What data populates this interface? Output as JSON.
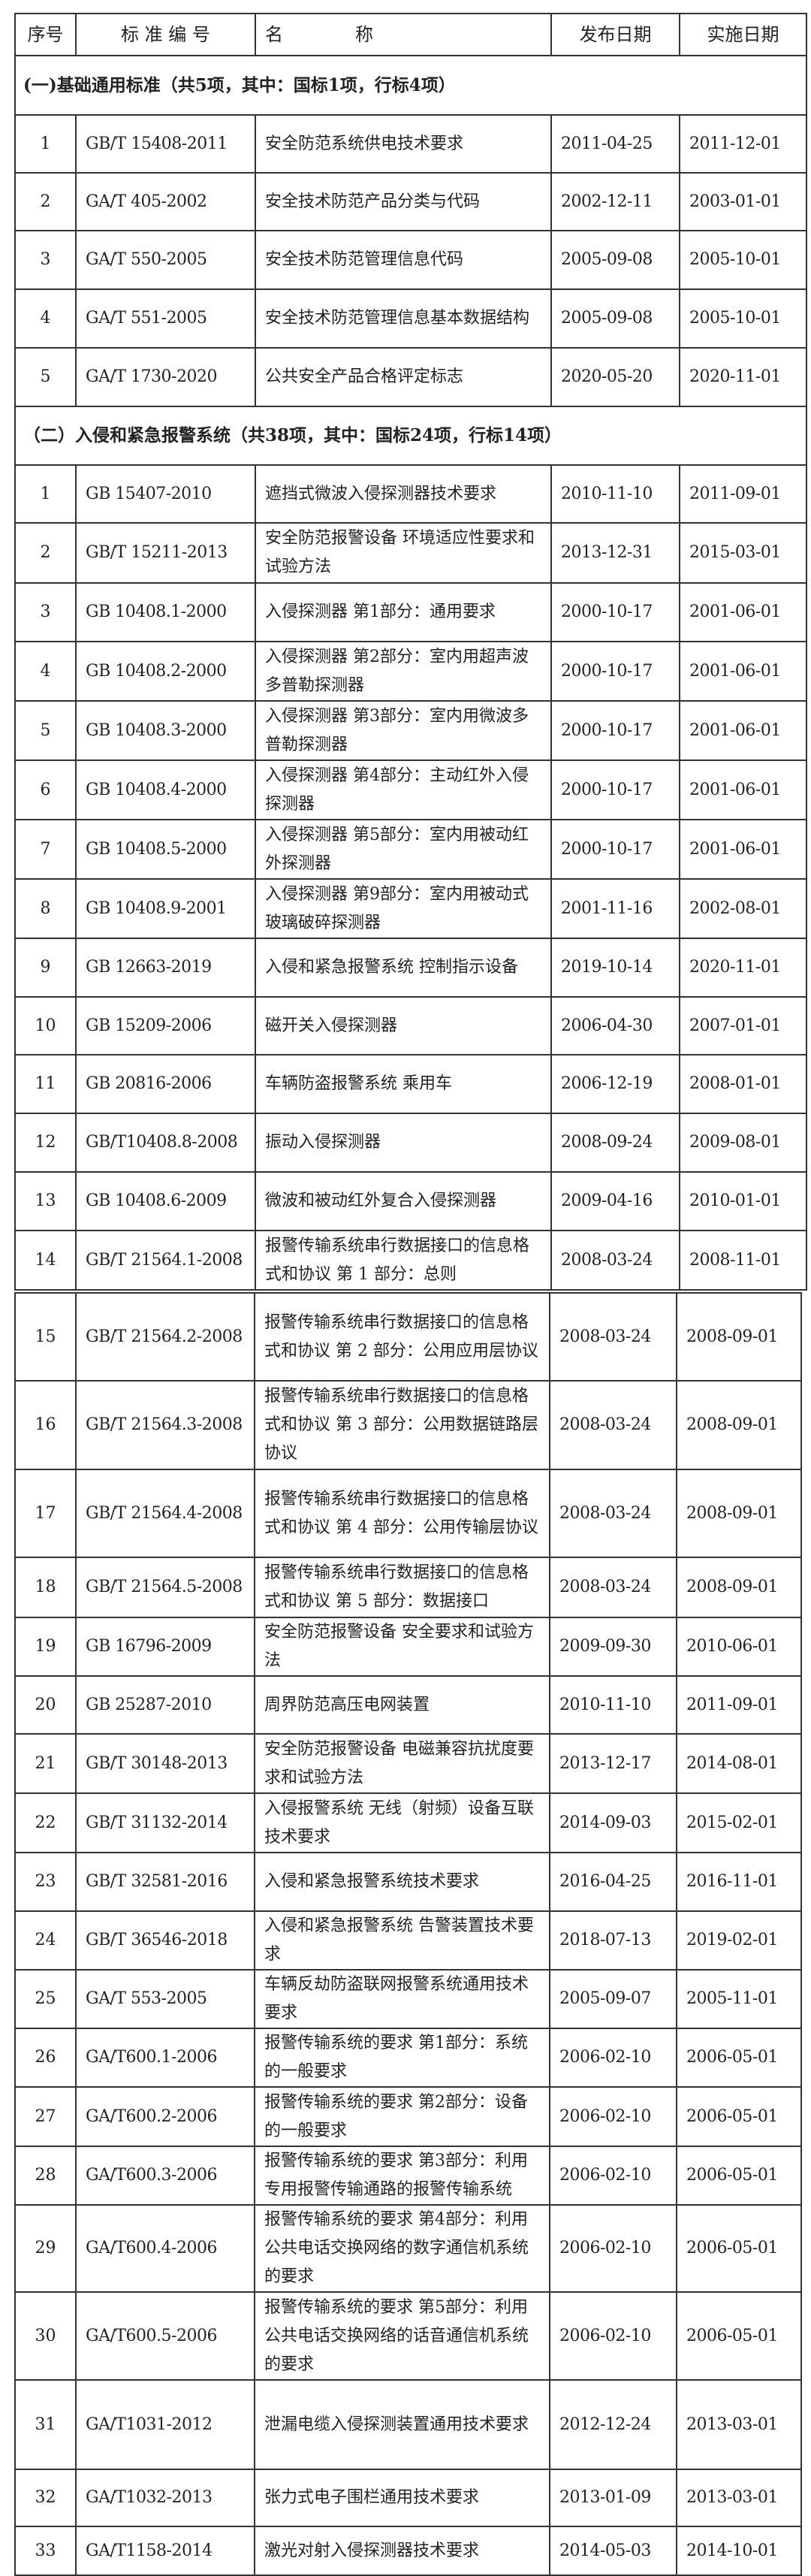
{
  "header": {
    "seq": "序号",
    "code": "标 准 编 号",
    "name": "名　　　　称",
    "publish": "发布日期",
    "effective": "实施日期"
  },
  "sections": [
    {
      "title": "(一)基础通用标准（共5项，其中：国标1项，行标4项）",
      "rows": [
        {
          "seq": "1",
          "code": "GB/T 15408-2011",
          "name": "安全防范系统供电技术要求",
          "publish": "2011-04-25",
          "effective": "2011-12-01"
        },
        {
          "seq": "2",
          "code": "GA/T 405-2002",
          "name": "安全技术防范产品分类与代码",
          "publish": "2002-12-11",
          "effective": "2003-01-01"
        },
        {
          "seq": "3",
          "code": "GA/T 550-2005",
          "name": "安全技术防范管理信息代码",
          "publish": "2005-09-08",
          "effective": "2005-10-01"
        },
        {
          "seq": "4",
          "code": "GA/T 551-2005",
          "name": "安全技术防范管理信息基本数据结构",
          "publish": "2005-09-08",
          "effective": "2005-10-01"
        },
        {
          "seq": "5",
          "code": "GA/T 1730-2020",
          "name": "公共安全产品合格评定标志",
          "publish": "2020-05-20",
          "effective": "2020-11-01"
        }
      ]
    },
    {
      "title": "（二）入侵和紧急报警系统（共38项，其中：国标24项，行标14项）",
      "rows": [
        {
          "seq": "1",
          "code": "GB 15407-2010",
          "name": "遮挡式微波入侵探测器技术要求",
          "publish": "2010-11-10",
          "effective": "2011-09-01"
        },
        {
          "seq": "2",
          "code": "GB/T 15211-2013",
          "name": "安全防范报警设备 环境适应性要求和试验方法",
          "publish": "2013-12-31",
          "effective": "2015-03-01"
        },
        {
          "seq": "3",
          "code": "GB 10408.1-2000",
          "name": "入侵探测器 第1部分：通用要求",
          "publish": "2000-10-17",
          "effective": "2001-06-01"
        },
        {
          "seq": "4",
          "code": "GB 10408.2-2000",
          "name": "入侵探测器 第2部分：室内用超声波多普勒探测器",
          "publish": "2000-10-17",
          "effective": "2001-06-01"
        },
        {
          "seq": "5",
          "code": "GB 10408.3-2000",
          "name": "入侵探测器 第3部分：室内用微波多普勒探测器",
          "publish": "2000-10-17",
          "effective": "2001-06-01"
        },
        {
          "seq": "6",
          "code": "GB 10408.4-2000",
          "name": "入侵探测器 第4部分：主动红外入侵探测器",
          "publish": "2000-10-17",
          "effective": "2001-06-01"
        },
        {
          "seq": "7",
          "code": "GB 10408.5-2000",
          "name": "入侵探测器 第5部分：室内用被动红外探测器",
          "publish": "2000-10-17",
          "effective": "2001-06-01"
        },
        {
          "seq": "8",
          "code": "GB 10408.9-2001",
          "name": "入侵探测器 第9部分：室内用被动式玻璃破碎探测器",
          "publish": "2001-11-16",
          "effective": "2002-08-01"
        },
        {
          "seq": "9",
          "code": "GB 12663-2019",
          "name": "入侵和紧急报警系统 控制指示设备",
          "publish": "2019-10-14",
          "effective": "2020-11-01"
        },
        {
          "seq": "10",
          "code": "GB 15209-2006",
          "name": "磁开关入侵探测器",
          "publish": "2006-04-30",
          "effective": "2007-01-01"
        },
        {
          "seq": "11",
          "code": "GB 20816-2006",
          "name": "车辆防盗报警系统 乘用车",
          "publish": "2006-12-19",
          "effective": "2008-01-01"
        },
        {
          "seq": "12",
          "code": "GB/T10408.8-2008",
          "name": "振动入侵探测器",
          "publish": "2008-09-24",
          "effective": "2009-08-01"
        },
        {
          "seq": "13",
          "code": "GB 10408.6-2009",
          "name": "微波和被动红外复合入侵探测器",
          "publish": "2009-04-16",
          "effective": "2010-01-01"
        },
        {
          "seq": "14",
          "code": "GB/T 21564.1-2008",
          "name": "报警传输系统串行数据接口的信息格式和协议 第 1 部分：总则",
          "publish": "2008-03-24",
          "effective": "2008-11-01"
        },
        {
          "seq": "15",
          "code": "GB/T 21564.2-2008",
          "name": "报警传输系统串行数据接口的信息格式和协议 第 2 部分：公用应用层协议",
          "publish": "2008-03-24",
          "effective": "2008-09-01"
        },
        {
          "seq": "16",
          "code": "GB/T 21564.3-2008",
          "name": "报警传输系统串行数据接口的信息格式和协议 第 3 部分：公用数据链路层协议",
          "publish": "2008-03-24",
          "effective": "2008-09-01"
        },
        {
          "seq": "17",
          "code": "GB/T 21564.4-2008",
          "name": "报警传输系统串行数据接口的信息格式和协议 第 4 部分：公用传输层协议",
          "publish": "2008-03-24",
          "effective": "2008-09-01"
        },
        {
          "seq": "18",
          "code": "GB/T 21564.5-2008",
          "name": "报警传输系统串行数据接口的信息格式和协议 第 5 部分：数据接口",
          "publish": "2008-03-24",
          "effective": "2008-09-01"
        },
        {
          "seq": "19",
          "code": "GB 16796-2009",
          "name": "安全防范报警设备 安全要求和试验方法",
          "publish": "2009-09-30",
          "effective": "2010-06-01"
        },
        {
          "seq": "20",
          "code": "GB 25287-2010",
          "name": "周界防范高压电网装置",
          "publish": "2010-11-10",
          "effective": "2011-09-01"
        },
        {
          "seq": "21",
          "code": "GB/T 30148-2013",
          "name": "安全防范报警设备 电磁兼容抗扰度要求和试验方法",
          "publish": "2013-12-17",
          "effective": "2014-08-01"
        },
        {
          "seq": "22",
          "code": "GB/T 31132-2014",
          "name": "入侵报警系统 无线（射频）设备互联技术要求",
          "publish": "2014-09-03",
          "effective": "2015-02-01"
        },
        {
          "seq": "23",
          "code": "GB/T 32581-2016",
          "name": "入侵和紧急报警系统技术要求",
          "publish": "2016-04-25",
          "effective": "2016-11-01"
        },
        {
          "seq": "24",
          "code": "GB/T 36546-2018",
          "name": "入侵和紧急报警系统 告警装置技术要求",
          "publish": "2018-07-13",
          "effective": "2019-02-01"
        },
        {
          "seq": "25",
          "code": "GA/T 553-2005",
          "name": "车辆反劫防盗联网报警系统通用技术要求",
          "publish": "2005-09-07",
          "effective": "2005-11-01"
        },
        {
          "seq": "26",
          "code": "GA/T600.1-2006",
          "name": "报警传输系统的要求 第1部分：系统的一般要求",
          "publish": "2006-02-10",
          "effective": "2006-05-01"
        },
        {
          "seq": "27",
          "code": "GA/T600.2-2006",
          "name": "报警传输系统的要求 第2部分：设备的一般要求",
          "publish": "2006-02-10",
          "effective": "2006-05-01"
        },
        {
          "seq": "28",
          "code": "GA/T600.3-2006",
          "name": "报警传输系统的要求 第3部分：利用专用报警传输通路的报警传输系统",
          "publish": "2006-02-10",
          "effective": "2006-05-01"
        },
        {
          "seq": "29",
          "code": "GA/T600.4-2006",
          "name": "报警传输系统的要求 第4部分：利用公共电话交换网络的数字通信机系统的要求",
          "publish": "2006-02-10",
          "effective": "2006-05-01"
        },
        {
          "seq": "30",
          "code": "GA/T600.5-2006",
          "name": "报警传输系统的要求 第5部分：利用公共电话交换网络的话音通信机系统的要求",
          "publish": "2006-02-10",
          "effective": "2006-05-01"
        },
        {
          "seq": "31",
          "code": "GA/T1031-2012",
          "name": "泄漏电缆入侵探测装置通用技术要求",
          "publish": "2012-12-24",
          "effective": "2013-03-01"
        },
        {
          "seq": "32",
          "code": "GA/T1032-2013",
          "name": "张力式电子围栏通用技术要求",
          "publish": "2013-01-09",
          "effective": "2013-03-01"
        },
        {
          "seq": "33",
          "code": "GA/T1158-2014",
          "name": "激光对射入侵探测器技术要求",
          "publish": "2014-05-03",
          "effective": "2014-10-01"
        }
      ]
    }
  ]
}
